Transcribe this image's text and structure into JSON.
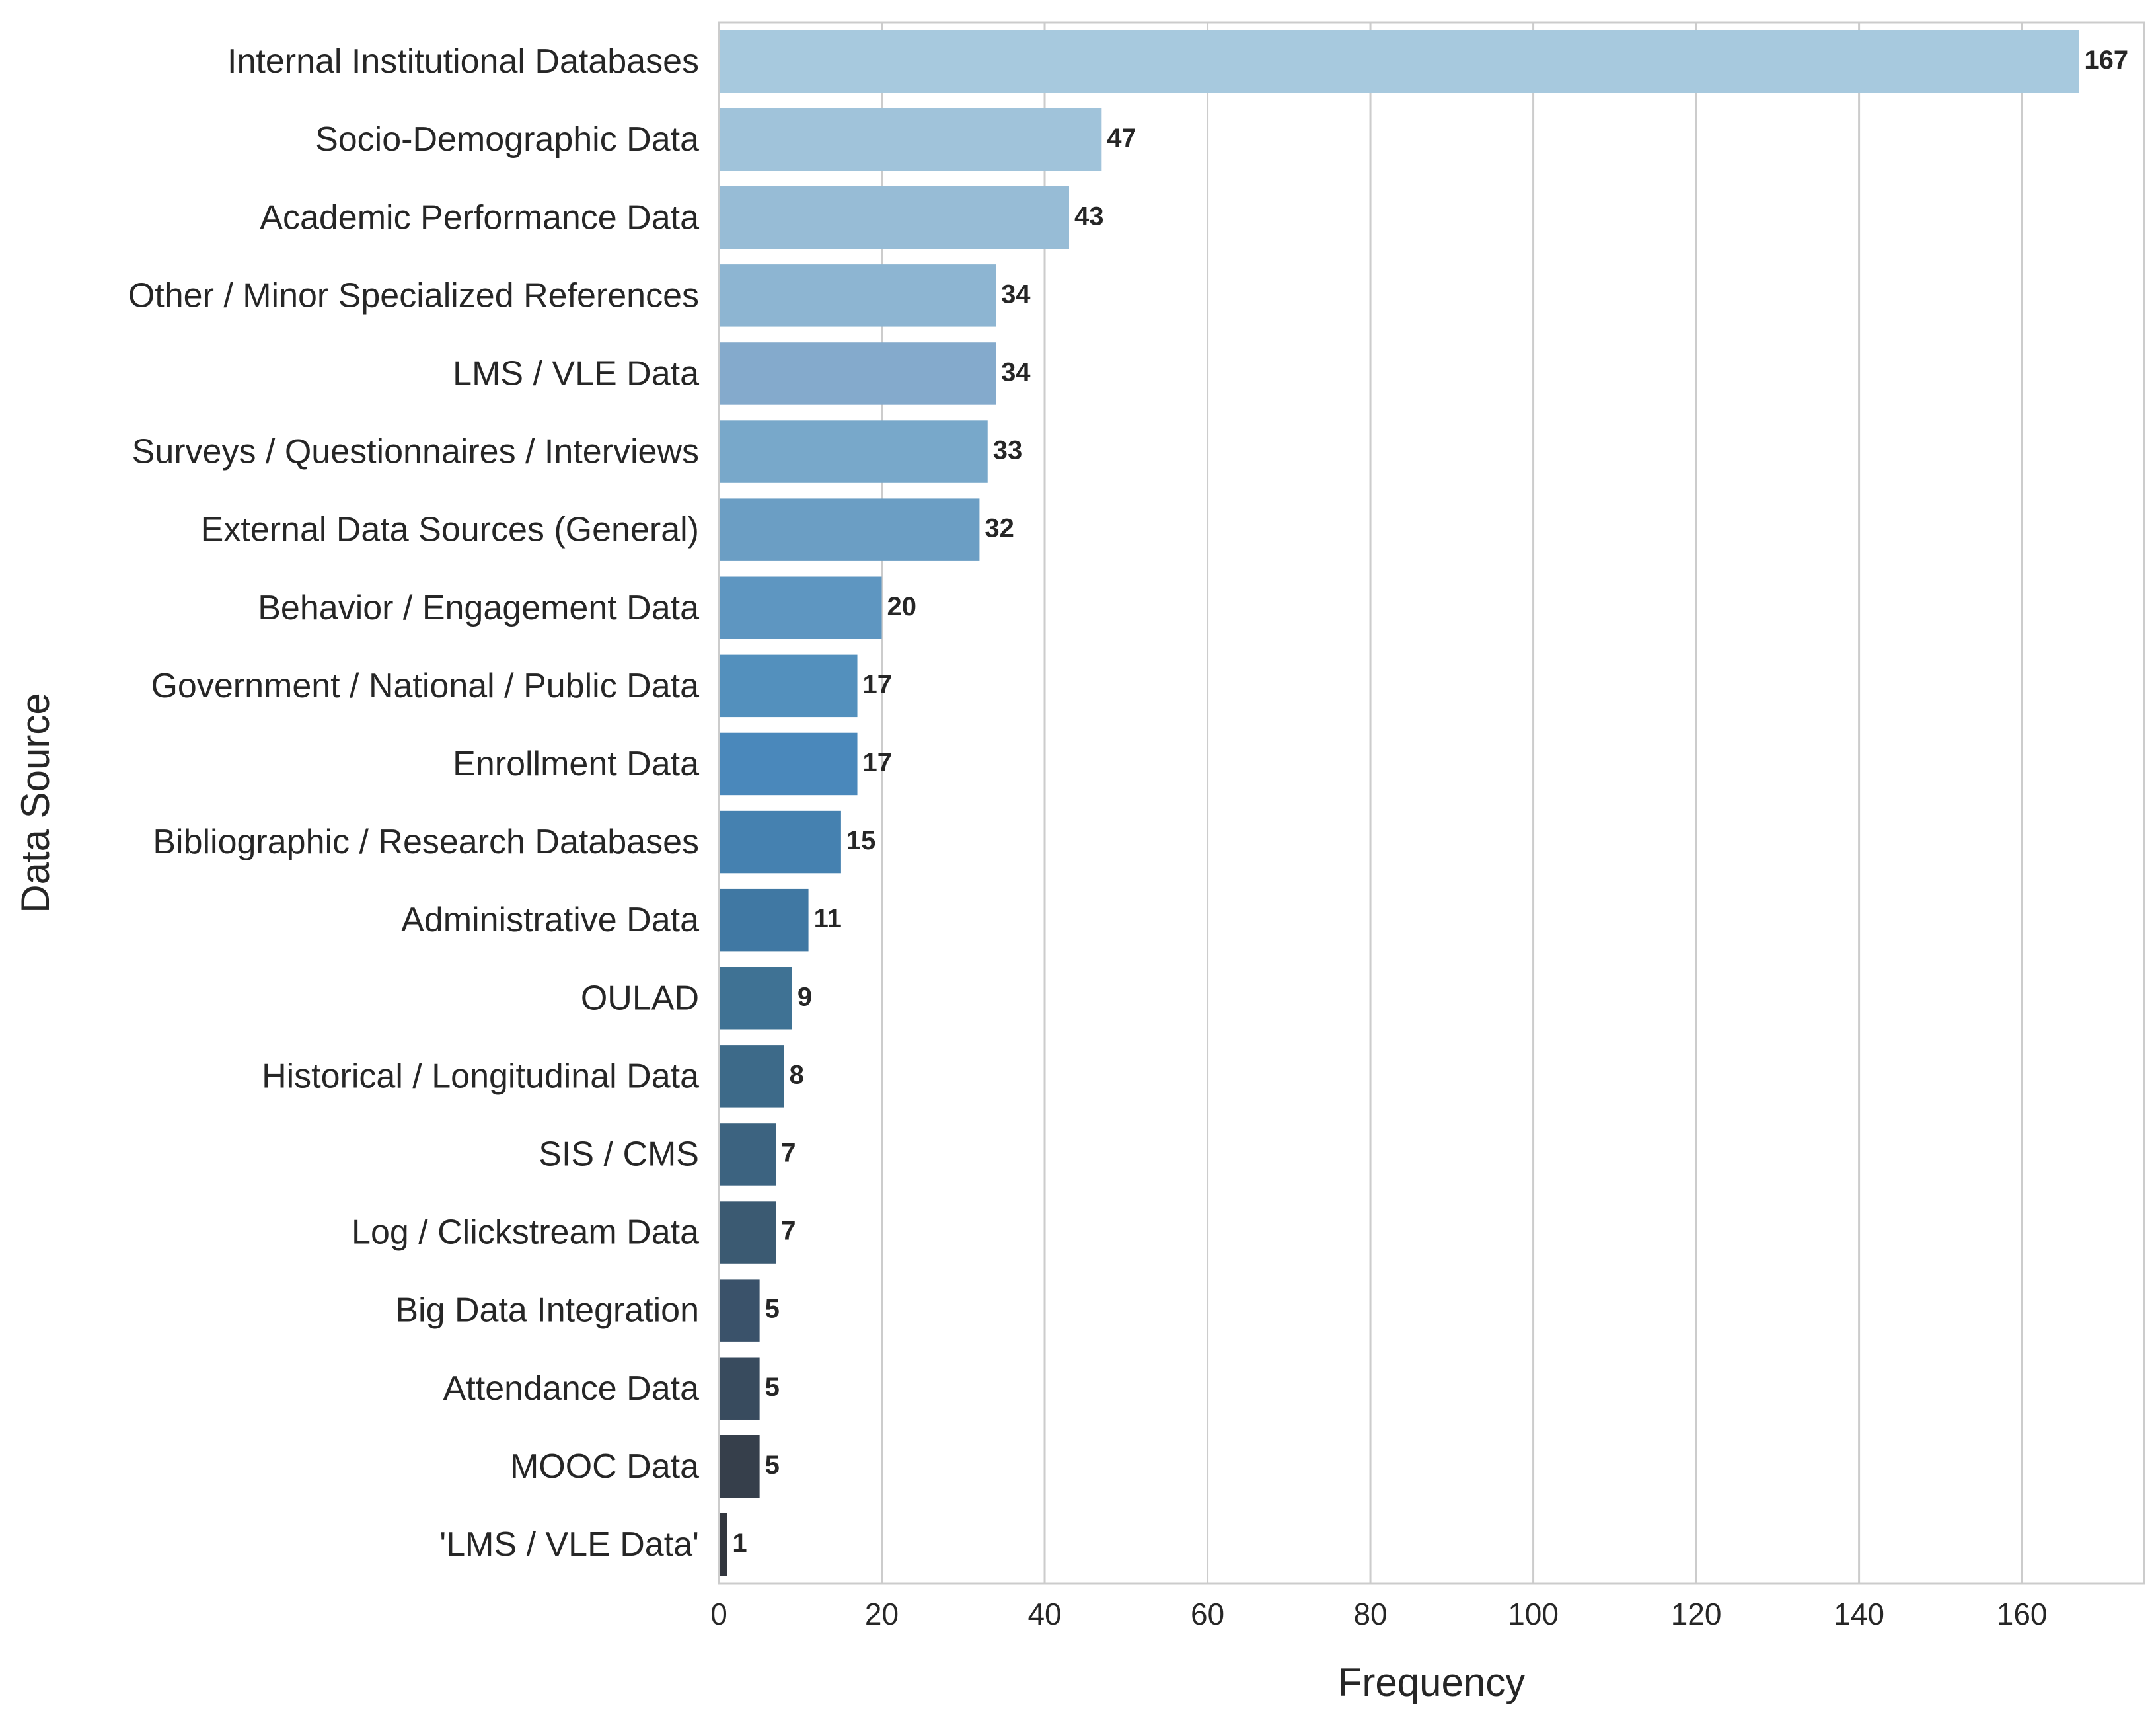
{
  "chart_data": {
    "type": "bar",
    "orientation": "horizontal",
    "title": "",
    "xlabel": "Frequency",
    "ylabel": "Data Source",
    "xlim": [
      0,
      175
    ],
    "xticks": [
      0,
      20,
      40,
      60,
      80,
      100,
      120,
      140,
      160
    ],
    "xtick_labels": [
      "0",
      "20",
      "40",
      "60",
      "80",
      "100",
      "120",
      "140",
      "160"
    ],
    "grid": "vertical",
    "categories": [
      "Internal Institutional Databases",
      "Socio-Demographic Data",
      "Academic Performance Data",
      "Other / Minor Specialized References",
      "LMS / VLE Data",
      "Surveys / Questionnaires / Interviews",
      "External Data Sources (General)",
      "Behavior / Engagement Data",
      "Government / National / Public Data",
      "Enrollment Data",
      "Bibliographic / Research Databases",
      "Administrative Data",
      "OULAD",
      "Historical / Longitudinal Data",
      "SIS / CMS",
      "Log / Clickstream Data",
      "Big Data Integration",
      "Attendance Data",
      "MOOC Data",
      "'LMS / VLE Data'"
    ],
    "values": [
      167,
      47,
      43,
      34,
      34,
      33,
      32,
      20,
      17,
      17,
      15,
      11,
      9,
      8,
      7,
      7,
      5,
      5,
      5,
      1
    ],
    "value_labels": [
      "167",
      "47",
      "43",
      "34",
      "34",
      "33",
      "32",
      "20",
      "17",
      "17",
      "15",
      "11",
      "9",
      "8",
      "7",
      "7",
      "5",
      "5",
      "5",
      "1"
    ],
    "colors": [
      "#a7c9de",
      "#a0c3da",
      "#97bcd6",
      "#8db5d2",
      "#84aacc",
      "#78a8ca",
      "#6b9ec4",
      "#5e96c1",
      "#5390bd",
      "#4a88bb",
      "#4581b0",
      "#4078a3",
      "#3f7294",
      "#3d6a89",
      "#3c6380",
      "#3b5a72",
      "#3a526a",
      "#384b5e",
      "#363f4b",
      "#32363e"
    ],
    "style": {
      "grid_color": "#cccccc",
      "frame_color": "#cccccc",
      "text_color": "#262626",
      "background": "#ffffff"
    }
  }
}
